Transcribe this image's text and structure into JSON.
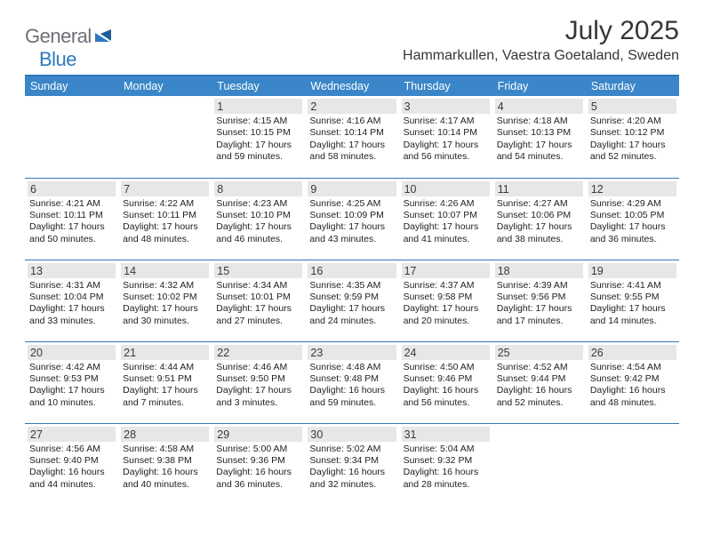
{
  "brand": {
    "part1": "General",
    "part2": "Blue"
  },
  "title": "July 2025",
  "location": "Hammarkullen, Vaestra Goetaland, Sweden",
  "colors": {
    "accent": "#2f78bd",
    "header_bg": "#3a86c8",
    "header_fg": "#ffffff",
    "daynum_bg": "#e7e7e7",
    "text": "#222222",
    "logo_gray": "#6c6f73"
  },
  "day_headers": [
    "Sunday",
    "Monday",
    "Tuesday",
    "Wednesday",
    "Thursday",
    "Friday",
    "Saturday"
  ],
  "weeks": [
    [
      {
        "n": "",
        "lines": []
      },
      {
        "n": "",
        "lines": []
      },
      {
        "n": "1",
        "lines": [
          "Sunrise: 4:15 AM",
          "Sunset: 10:15 PM",
          "Daylight: 17 hours",
          "and 59 minutes."
        ]
      },
      {
        "n": "2",
        "lines": [
          "Sunrise: 4:16 AM",
          "Sunset: 10:14 PM",
          "Daylight: 17 hours",
          "and 58 minutes."
        ]
      },
      {
        "n": "3",
        "lines": [
          "Sunrise: 4:17 AM",
          "Sunset: 10:14 PM",
          "Daylight: 17 hours",
          "and 56 minutes."
        ]
      },
      {
        "n": "4",
        "lines": [
          "Sunrise: 4:18 AM",
          "Sunset: 10:13 PM",
          "Daylight: 17 hours",
          "and 54 minutes."
        ]
      },
      {
        "n": "5",
        "lines": [
          "Sunrise: 4:20 AM",
          "Sunset: 10:12 PM",
          "Daylight: 17 hours",
          "and 52 minutes."
        ]
      }
    ],
    [
      {
        "n": "6",
        "lines": [
          "Sunrise: 4:21 AM",
          "Sunset: 10:11 PM",
          "Daylight: 17 hours",
          "and 50 minutes."
        ]
      },
      {
        "n": "7",
        "lines": [
          "Sunrise: 4:22 AM",
          "Sunset: 10:11 PM",
          "Daylight: 17 hours",
          "and 48 minutes."
        ]
      },
      {
        "n": "8",
        "lines": [
          "Sunrise: 4:23 AM",
          "Sunset: 10:10 PM",
          "Daylight: 17 hours",
          "and 46 minutes."
        ]
      },
      {
        "n": "9",
        "lines": [
          "Sunrise: 4:25 AM",
          "Sunset: 10:09 PM",
          "Daylight: 17 hours",
          "and 43 minutes."
        ]
      },
      {
        "n": "10",
        "lines": [
          "Sunrise: 4:26 AM",
          "Sunset: 10:07 PM",
          "Daylight: 17 hours",
          "and 41 minutes."
        ]
      },
      {
        "n": "11",
        "lines": [
          "Sunrise: 4:27 AM",
          "Sunset: 10:06 PM",
          "Daylight: 17 hours",
          "and 38 minutes."
        ]
      },
      {
        "n": "12",
        "lines": [
          "Sunrise: 4:29 AM",
          "Sunset: 10:05 PM",
          "Daylight: 17 hours",
          "and 36 minutes."
        ]
      }
    ],
    [
      {
        "n": "13",
        "lines": [
          "Sunrise: 4:31 AM",
          "Sunset: 10:04 PM",
          "Daylight: 17 hours",
          "and 33 minutes."
        ]
      },
      {
        "n": "14",
        "lines": [
          "Sunrise: 4:32 AM",
          "Sunset: 10:02 PM",
          "Daylight: 17 hours",
          "and 30 minutes."
        ]
      },
      {
        "n": "15",
        "lines": [
          "Sunrise: 4:34 AM",
          "Sunset: 10:01 PM",
          "Daylight: 17 hours",
          "and 27 minutes."
        ]
      },
      {
        "n": "16",
        "lines": [
          "Sunrise: 4:35 AM",
          "Sunset: 9:59 PM",
          "Daylight: 17 hours",
          "and 24 minutes."
        ]
      },
      {
        "n": "17",
        "lines": [
          "Sunrise: 4:37 AM",
          "Sunset: 9:58 PM",
          "Daylight: 17 hours",
          "and 20 minutes."
        ]
      },
      {
        "n": "18",
        "lines": [
          "Sunrise: 4:39 AM",
          "Sunset: 9:56 PM",
          "Daylight: 17 hours",
          "and 17 minutes."
        ]
      },
      {
        "n": "19",
        "lines": [
          "Sunrise: 4:41 AM",
          "Sunset: 9:55 PM",
          "Daylight: 17 hours",
          "and 14 minutes."
        ]
      }
    ],
    [
      {
        "n": "20",
        "lines": [
          "Sunrise: 4:42 AM",
          "Sunset: 9:53 PM",
          "Daylight: 17 hours",
          "and 10 minutes."
        ]
      },
      {
        "n": "21",
        "lines": [
          "Sunrise: 4:44 AM",
          "Sunset: 9:51 PM",
          "Daylight: 17 hours",
          "and 7 minutes."
        ]
      },
      {
        "n": "22",
        "lines": [
          "Sunrise: 4:46 AM",
          "Sunset: 9:50 PM",
          "Daylight: 17 hours",
          "and 3 minutes."
        ]
      },
      {
        "n": "23",
        "lines": [
          "Sunrise: 4:48 AM",
          "Sunset: 9:48 PM",
          "Daylight: 16 hours",
          "and 59 minutes."
        ]
      },
      {
        "n": "24",
        "lines": [
          "Sunrise: 4:50 AM",
          "Sunset: 9:46 PM",
          "Daylight: 16 hours",
          "and 56 minutes."
        ]
      },
      {
        "n": "25",
        "lines": [
          "Sunrise: 4:52 AM",
          "Sunset: 9:44 PM",
          "Daylight: 16 hours",
          "and 52 minutes."
        ]
      },
      {
        "n": "26",
        "lines": [
          "Sunrise: 4:54 AM",
          "Sunset: 9:42 PM",
          "Daylight: 16 hours",
          "and 48 minutes."
        ]
      }
    ],
    [
      {
        "n": "27",
        "lines": [
          "Sunrise: 4:56 AM",
          "Sunset: 9:40 PM",
          "Daylight: 16 hours",
          "and 44 minutes."
        ]
      },
      {
        "n": "28",
        "lines": [
          "Sunrise: 4:58 AM",
          "Sunset: 9:38 PM",
          "Daylight: 16 hours",
          "and 40 minutes."
        ]
      },
      {
        "n": "29",
        "lines": [
          "Sunrise: 5:00 AM",
          "Sunset: 9:36 PM",
          "Daylight: 16 hours",
          "and 36 minutes."
        ]
      },
      {
        "n": "30",
        "lines": [
          "Sunrise: 5:02 AM",
          "Sunset: 9:34 PM",
          "Daylight: 16 hours",
          "and 32 minutes."
        ]
      },
      {
        "n": "31",
        "lines": [
          "Sunrise: 5:04 AM",
          "Sunset: 9:32 PM",
          "Daylight: 16 hours",
          "and 28 minutes."
        ]
      },
      {
        "n": "",
        "lines": []
      },
      {
        "n": "",
        "lines": []
      }
    ]
  ]
}
